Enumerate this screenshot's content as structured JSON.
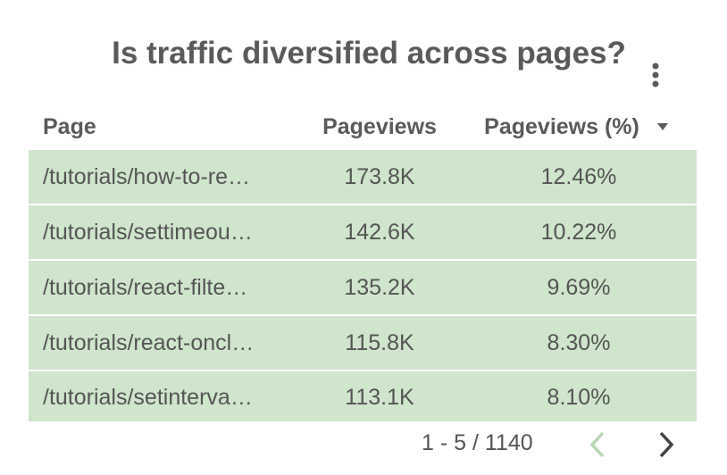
{
  "title": "Is traffic diversified across pages?",
  "table": {
    "columns": [
      "Page",
      "Pageviews",
      "Pageviews (%)"
    ],
    "rows": [
      [
        "/tutorials/how-to-re…",
        "173.8K",
        "12.46%"
      ],
      [
        "/tutorials/settimeou…",
        "142.6K",
        "10.22%"
      ],
      [
        "/tutorials/react-filte…",
        "135.2K",
        "9.69%"
      ],
      [
        "/tutorials/react-oncl…",
        "115.8K",
        "8.30%"
      ],
      [
        "/tutorials/setinterva…",
        "113.1K",
        "8.10%"
      ]
    ]
  },
  "pagination": "1 - 5 / 1140"
}
